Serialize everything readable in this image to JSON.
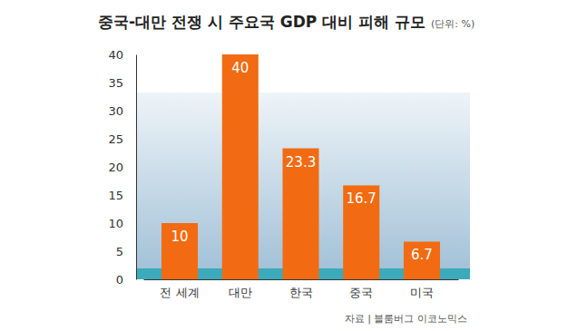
{
  "chart_data": {
    "type": "bar",
    "title": "중국-대만 전쟁 시 주요국 GDP 대비 피해 규모",
    "subtitle": "(단위: %)",
    "source": "자료 | 블룸버그 이코노믹스",
    "categories": [
      "전 세계",
      "대만",
      "한국",
      "중국",
      "미국"
    ],
    "values": [
      10,
      40,
      23.3,
      16.7,
      6.7
    ],
    "color": "#f26b12",
    "ylim": [
      0,
      40
    ],
    "yticks": [
      0,
      5,
      10,
      15,
      20,
      25,
      30,
      35,
      40
    ],
    "grid": false,
    "data_labels": true
  }
}
